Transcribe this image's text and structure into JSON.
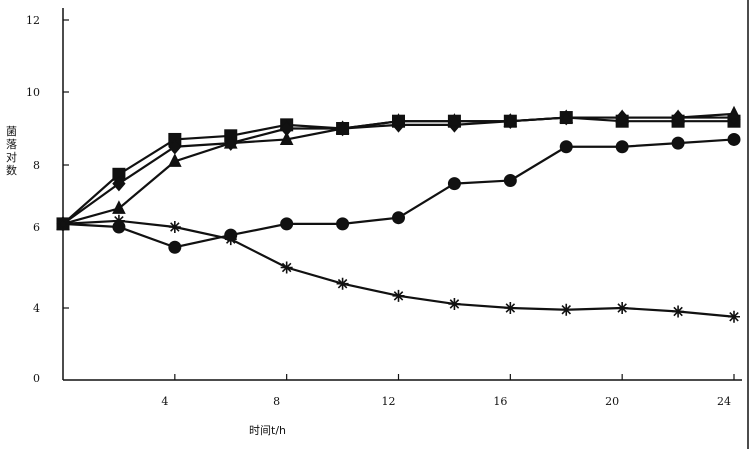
{
  "chart_data": {
    "type": "line",
    "title": "",
    "xlabel": "时间t/h",
    "ylabel": "菌落对数",
    "xlim": [
      0,
      24
    ],
    "ylim": [
      0,
      12
    ],
    "x_ticks": [
      4,
      8,
      12,
      16,
      20,
      24
    ],
    "y_ticks": [
      0,
      4,
      6,
      8,
      10,
      12
    ],
    "grid": false,
    "legend": "none",
    "series": [
      {
        "marker": "square",
        "x": [
          0,
          2,
          4,
          6,
          8,
          10,
          12,
          14,
          16,
          18,
          20,
          22,
          24
        ],
        "y": [
          6.1,
          7.7,
          8.7,
          8.8,
          9.1,
          9.0,
          9.2,
          9.2,
          9.2,
          9.3,
          9.2,
          9.2,
          9.2
        ]
      },
      {
        "marker": "diamond",
        "x": [
          0,
          2,
          4,
          6,
          8,
          10,
          12,
          14,
          16,
          18,
          20,
          22,
          24
        ],
        "y": [
          6.1,
          7.4,
          8.5,
          8.6,
          9.0,
          9.0,
          9.1,
          9.1,
          9.2,
          9.3,
          9.3,
          9.3,
          9.3
        ]
      },
      {
        "marker": "triangle",
        "x": [
          0,
          2,
          4,
          6,
          8,
          10,
          12,
          14,
          16,
          18,
          20,
          22,
          24
        ],
        "y": [
          6.1,
          6.6,
          8.1,
          8.6,
          8.7,
          9.0,
          9.2,
          9.2,
          9.2,
          9.3,
          9.3,
          9.3,
          9.4
        ]
      },
      {
        "marker": "circle",
        "x": [
          0,
          2,
          4,
          6,
          8,
          10,
          12,
          14,
          16,
          18,
          20,
          22,
          24
        ],
        "y": [
          6.1,
          6.0,
          5.5,
          5.8,
          6.1,
          6.1,
          6.3,
          7.4,
          7.5,
          8.5,
          8.5,
          8.6,
          8.7
        ]
      },
      {
        "marker": "star",
        "x": [
          0,
          2,
          4,
          6,
          8,
          10,
          12,
          14,
          16,
          18,
          20,
          22,
          24
        ],
        "y": [
          6.1,
          6.2,
          6.0,
          5.7,
          5.0,
          4.6,
          4.3,
          4.1,
          4.0,
          3.9,
          4.0,
          3.8,
          3.5
        ]
      }
    ]
  }
}
